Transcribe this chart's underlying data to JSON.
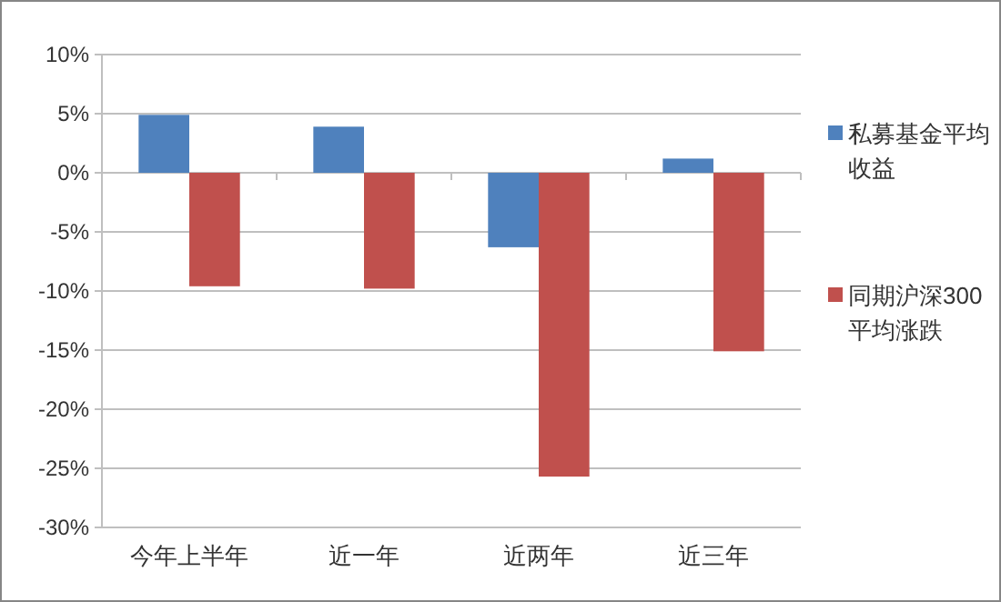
{
  "chart_data": {
    "type": "bar",
    "categories": [
      "今年上半年",
      "近一年",
      "近两年",
      "近三年"
    ],
    "series": [
      {
        "name": "私募基金平均收益",
        "color": "#4f81bd",
        "values": [
          4.9,
          3.9,
          -6.3,
          1.2
        ]
      },
      {
        "name": "同期沪深300平均涨跌",
        "color": "#c0504d",
        "values": [
          -9.6,
          -9.8,
          -25.7,
          -15.1
        ]
      }
    ],
    "ylim": [
      -30,
      10
    ],
    "yticks": [
      {
        "value": 10,
        "label": "10%"
      },
      {
        "value": 5,
        "label": "5%"
      },
      {
        "value": 0,
        "label": "0%"
      },
      {
        "value": -5,
        "label": "-5%"
      },
      {
        "value": -10,
        "label": "-10%"
      },
      {
        "value": -15,
        "label": "-15%"
      },
      {
        "value": -20,
        "label": "-20%"
      },
      {
        "value": -25,
        "label": "-25%"
      },
      {
        "value": -30,
        "label": "-30%"
      }
    ],
    "grid": "y",
    "legend": "right"
  }
}
